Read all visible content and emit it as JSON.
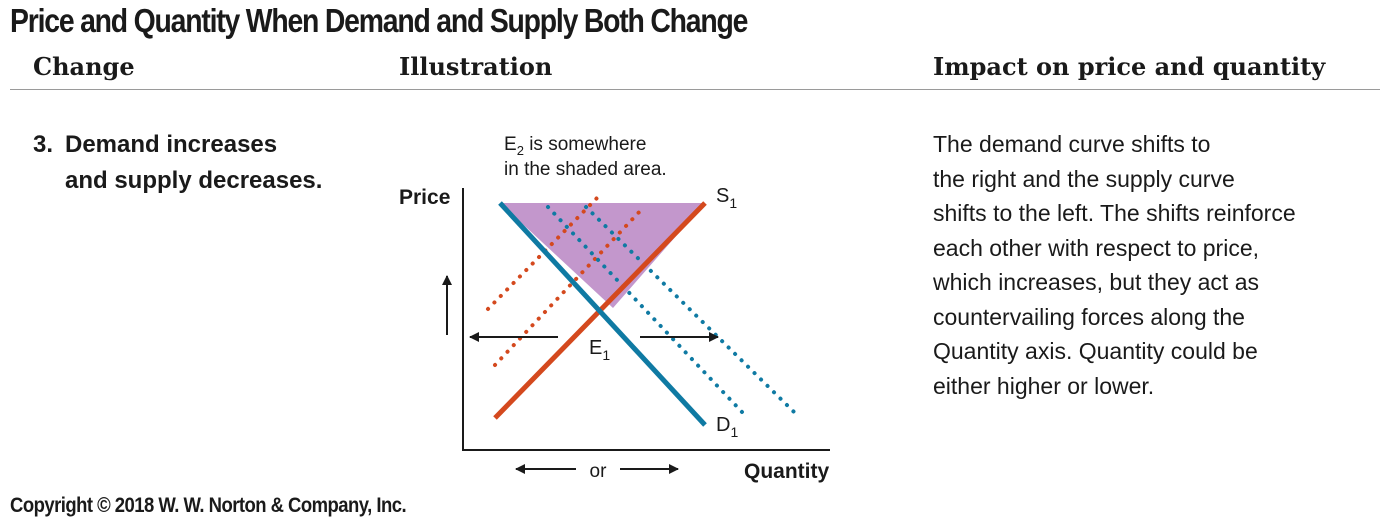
{
  "title": "Price and Quantity When Demand and Supply Both Change",
  "columns": {
    "change": "Change",
    "illustration": "Illustration",
    "impact": "Impact on price and quantity"
  },
  "row": {
    "number": "3.",
    "change_line1": "Demand increases",
    "change_line2": "and supply decreases.",
    "impact_lines": [
      "The demand curve shifts to",
      "the right and the supply curve",
      "shifts to the left. The shifts reinforce",
      "each other with respect to price,",
      "which increases, but they act as",
      "countervailing forces along the",
      "Quantity axis. Quantity could be",
      "either higher or lower."
    ]
  },
  "diagram": {
    "annotation_line1_prefix": "E",
    "annotation_line1_sub": "2",
    "annotation_line1_suffix": " is somewhere",
    "annotation_line2": "in the shaded area.",
    "y_axis_label": "Price",
    "x_axis_label": "Quantity",
    "supply_label": "S",
    "supply_sub": "1",
    "demand_label": "D",
    "demand_sub": "1",
    "equilibrium_label": "E",
    "equilibrium_sub": "1",
    "or_label": "or",
    "colors": {
      "supply": "#d4491e",
      "demand": "#0f7aa3",
      "shade": "#c397cc"
    }
  },
  "copyright": "Copyright © 2018 W. W. Norton & Company, Inc."
}
